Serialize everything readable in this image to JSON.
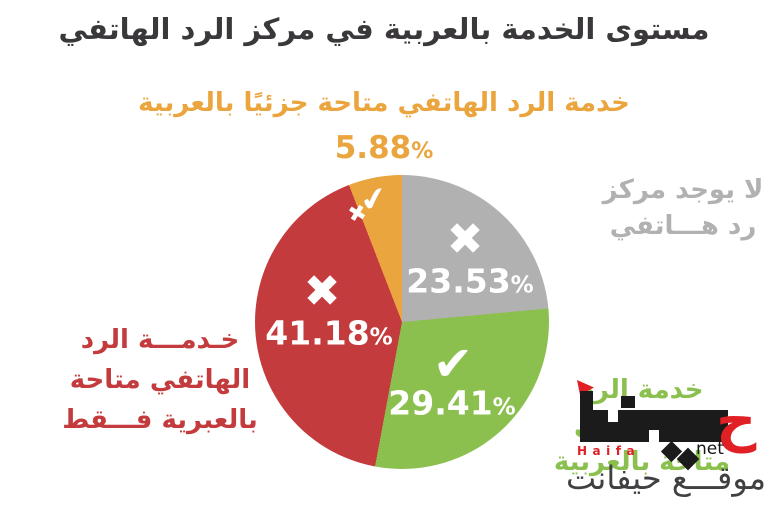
{
  "title": "مستوى الخدمة بالعربية في مركز الرد الهاتفي",
  "percent_symbol": "%",
  "icons": {
    "x": "✖",
    "check": "✔"
  },
  "chart_data": {
    "type": "pie",
    "title": "مستوى الخدمة بالعربية في مركز الرد الهاتفي",
    "unit": "%",
    "direction": "clockwise",
    "start_angle_deg": 0,
    "legend_position": "around",
    "slices": [
      {
        "label": "لا يوجد مركز رد هاتفي",
        "value": 23.53,
        "pct": "23.53",
        "color": "#b2b1b2",
        "icon": "x"
      },
      {
        "label": "خدمة الرد الهاتفي متاحة بالعربية",
        "value": 29.41,
        "pct": "29.41",
        "color": "#8bc04f",
        "icon": "check"
      },
      {
        "label": "خدمة الرد الهاتفي متاحة بالعبرية فقط",
        "value": 41.18,
        "pct": "41.18",
        "color": "#c43b3d",
        "icon": "x"
      },
      {
        "label": "خدمة الرد الهاتفي متاحة جزئيًا بالعربية",
        "value": 5.88,
        "pct": "5.88",
        "color": "#eaa53f",
        "icon": "partial"
      }
    ]
  },
  "labels": {
    "partial": {
      "text": "خدمة الرد الهاتفي متاحة جزئيًا بالعربية"
    },
    "none": {
      "line1": "لا يوجد مركز",
      "line2": "رد هـــاتفي"
    },
    "hebrew_only": {
      "line1": "خـدمـــة الرد",
      "line2": "الهاتفي متاحة",
      "line3": "بالعبرية فـــقط"
    },
    "arabic": {
      "line1": "خدمة الرد",
      "line2": "الهــاتفــي",
      "line3": "متاحة بالعربية"
    }
  },
  "watermark": {
    "logo_text": "حيفا",
    "logo_red_letter": "ح",
    "logo_latin": "Haifa",
    "logo_net": "net",
    "site_text": "موقـــع حيفانت"
  }
}
